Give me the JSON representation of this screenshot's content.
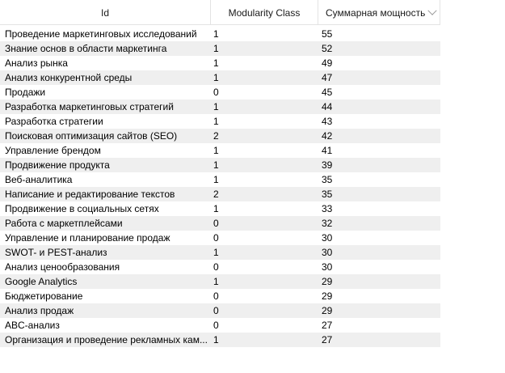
{
  "table": {
    "columns": [
      {
        "label": "Id"
      },
      {
        "label": "Modularity Class"
      },
      {
        "label": "Суммарная мощность",
        "sort_icon": "chevron-down-icon"
      }
    ],
    "rows": [
      {
        "id": "Проведение маркетинговых исследований",
        "modularity": "1",
        "power": "55"
      },
      {
        "id": "Знание основ в области маркетинга",
        "modularity": "1",
        "power": "52"
      },
      {
        "id": "Анализ рынка",
        "modularity": "1",
        "power": "49"
      },
      {
        "id": "Анализ конкурентной среды",
        "modularity": "1",
        "power": "47"
      },
      {
        "id": "Продажи",
        "modularity": "0",
        "power": "45"
      },
      {
        "id": "Разработка маркетинговых стратегий",
        "modularity": "1",
        "power": "44"
      },
      {
        "id": "Разработка стратегии",
        "modularity": "1",
        "power": "43"
      },
      {
        "id": "Поисковая оптимизация сайтов (SEO)",
        "modularity": "2",
        "power": "42"
      },
      {
        "id": "Управление брендом",
        "modularity": "1",
        "power": "41"
      },
      {
        "id": "Продвижение продукта",
        "modularity": "1",
        "power": "39"
      },
      {
        "id": "Веб-аналитика",
        "modularity": "1",
        "power": "35"
      },
      {
        "id": "Написание и редактирование текстов",
        "modularity": "2",
        "power": "35"
      },
      {
        "id": "Продвижение в социальных сетях",
        "modularity": "1",
        "power": "33"
      },
      {
        "id": "Работа с маркетплейсами",
        "modularity": "0",
        "power": "32"
      },
      {
        "id": "Управление и планирование продаж",
        "modularity": "0",
        "power": "30"
      },
      {
        "id": "SWOT- и PEST-анализ",
        "modularity": "1",
        "power": "30"
      },
      {
        "id": "Анализ ценообразования",
        "modularity": "0",
        "power": "30"
      },
      {
        "id": "Google Analytics",
        "modularity": "1",
        "power": "29"
      },
      {
        "id": "Бюджетирование",
        "modularity": "0",
        "power": "29"
      },
      {
        "id": "Анализ продаж",
        "modularity": "0",
        "power": "29"
      },
      {
        "id": "ABC-анализ",
        "modularity": "0",
        "power": "27"
      },
      {
        "id": "Организация и проведение рекламных кам...",
        "modularity": "1",
        "power": "27"
      }
    ]
  }
}
